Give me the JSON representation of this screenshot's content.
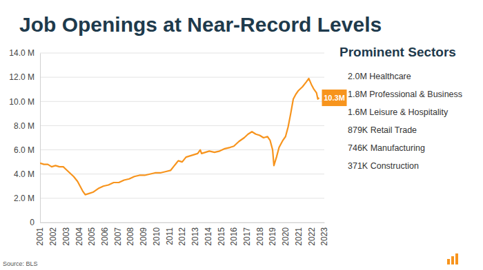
{
  "chart_data": {
    "type": "line",
    "title": "Job Openings at Near-Record Levels",
    "source": "Source: BLS",
    "color": "#f7941d",
    "grid": true,
    "x": [
      2001.0,
      2001.3,
      2001.6,
      2001.9,
      2002.2,
      2002.5,
      2002.8,
      2003.0,
      2003.3,
      2003.6,
      2003.9,
      2004.1,
      2004.3,
      2004.5,
      2004.8,
      2005.1,
      2005.5,
      2005.9,
      2006.3,
      2006.7,
      2007.1,
      2007.5,
      2007.9,
      2008.3,
      2008.7,
      2009.1,
      2009.5,
      2009.9,
      2010.3,
      2010.7,
      2011.1,
      2011.4,
      2011.7,
      2012.0,
      2012.3,
      2012.6,
      2012.9,
      2013.2,
      2013.4,
      2013.5,
      2013.8,
      2014.1,
      2014.5,
      2014.9,
      2015.3,
      2015.7,
      2016.0,
      2016.4,
      2016.8,
      2017.1,
      2017.4,
      2017.7,
      2018.0,
      2018.3,
      2018.6,
      2018.8,
      2019.0,
      2019.1,
      2019.3,
      2019.5,
      2019.8,
      2020.0,
      2020.2,
      2020.4,
      2020.6,
      2020.8,
      2021.0,
      2021.3,
      2021.6,
      2021.8,
      2022.0,
      2022.2,
      2022.4,
      2022.5,
      2022.6
    ],
    "values": [
      4.9,
      4.8,
      4.8,
      4.6,
      4.7,
      4.6,
      4.6,
      4.4,
      4.1,
      3.8,
      3.4,
      3.0,
      2.6,
      2.3,
      2.4,
      2.5,
      2.8,
      3.0,
      3.1,
      3.3,
      3.3,
      3.5,
      3.6,
      3.8,
      3.9,
      3.9,
      4.0,
      4.1,
      4.1,
      4.2,
      4.3,
      4.7,
      5.1,
      5.0,
      5.4,
      5.5,
      5.6,
      5.7,
      6.0,
      5.7,
      5.8,
      5.9,
      5.8,
      5.9,
      6.1,
      6.2,
      6.3,
      6.7,
      7.0,
      7.3,
      7.5,
      7.3,
      7.2,
      7.0,
      7.1,
      6.8,
      6.0,
      4.7,
      5.4,
      6.2,
      6.8,
      7.1,
      7.9,
      9.0,
      10.2,
      10.6,
      10.9,
      11.2,
      11.6,
      11.9,
      11.4,
      11.0,
      10.7,
      10.2,
      10.3
    ],
    "xlim": [
      2001,
      2023
    ],
    "xticks": [
      2001,
      2002,
      2003,
      2004,
      2005,
      2006,
      2007,
      2008,
      2009,
      2010,
      2011,
      2012,
      2013,
      2014,
      2015,
      2016,
      2017,
      2018,
      2019,
      2020,
      2021,
      2022,
      2023
    ],
    "ylim": [
      0,
      14
    ],
    "yticks": [
      0,
      {
        "value": 2,
        "label": "2.0 M"
      },
      {
        "value": 4,
        "label": "4.0 M"
      },
      {
        "value": 6,
        "label": "6.0 M"
      },
      {
        "value": 8,
        "label": "8.0 M"
      },
      {
        "value": 10,
        "label": "10.0 M"
      },
      {
        "value": 12,
        "label": "12.0 M"
      },
      {
        "value": 14,
        "label": "14.0 M"
      }
    ],
    "annotations": [
      {
        "x": 2022.6,
        "y": 10.3,
        "label": "10.3M"
      }
    ]
  },
  "sidebar": {
    "title": "Prominent Sectors",
    "items": [
      "2.0M Healthcare",
      "1.8M Professional & Business",
      "1.6M Leisure & Hospitality",
      "879K Retail Trade",
      "746K Manufacturing",
      "371K Construction"
    ]
  }
}
